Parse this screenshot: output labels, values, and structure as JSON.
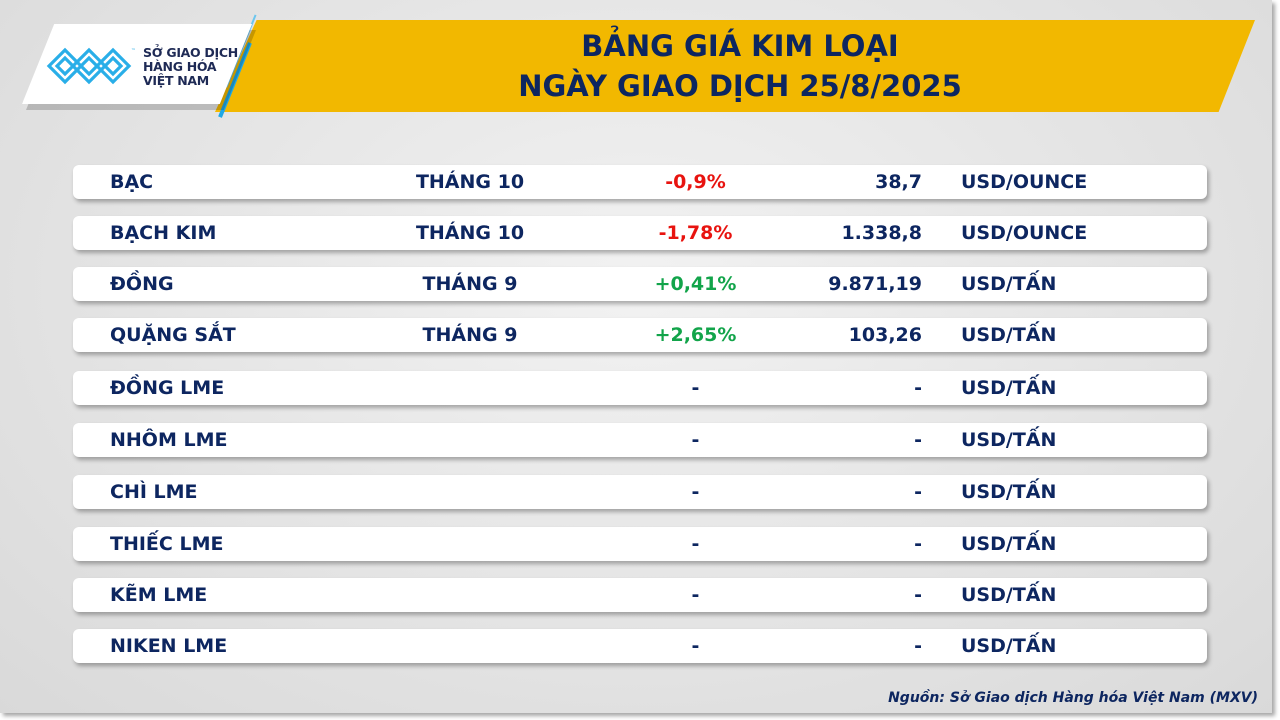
{
  "header": {
    "title_line1": "BẢNG GIÁ KIM LOẠI",
    "title_line2": "NGÀY GIAO DỊCH 25/8/2025",
    "logo": {
      "line1": "SỞ GIAO DỊCH",
      "line2": "HÀNG HÓA",
      "line3": "VIỆT NAM",
      "tm": "™"
    }
  },
  "colors": {
    "brand_navy": "#0d2660",
    "banner_gold": "#f2b800",
    "up": "#12a44a",
    "down": "#e8130f",
    "logo_blue": "#29aee8"
  },
  "rows": [
    {
      "name": "BẠC",
      "month": "THÁNG 10",
      "change": "-0,9%",
      "dir": "down",
      "price": "38,7",
      "unit": "USD/OUNCE"
    },
    {
      "name": "BẠCH KIM",
      "month": "THÁNG 10",
      "change": "-1,78%",
      "dir": "down",
      "price": "1.338,8",
      "unit": "USD/OUNCE"
    },
    {
      "name": "ĐỒNG",
      "month": "THÁNG 9",
      "change": "+0,41%",
      "dir": "up",
      "price": "9.871,19",
      "unit": "USD/TẤN"
    },
    {
      "name": "QUẶNG SẮT",
      "month": "THÁNG 9",
      "change": "+2,65%",
      "dir": "up",
      "price": "103,26",
      "unit": "USD/TẤN"
    },
    {
      "name": "ĐỒNG LME",
      "month": "",
      "change": "-",
      "dir": "",
      "price": "-",
      "unit": "USD/TẤN"
    },
    {
      "name": "NHÔM LME",
      "month": "",
      "change": "-",
      "dir": "",
      "price": "-",
      "unit": "USD/TẤN"
    },
    {
      "name": "CHÌ LME",
      "month": "",
      "change": "-",
      "dir": "",
      "price": "-",
      "unit": "USD/TẤN"
    },
    {
      "name": "THIẾC LME",
      "month": "",
      "change": "-",
      "dir": "",
      "price": "-",
      "unit": "USD/TẤN"
    },
    {
      "name": "KẼM LME",
      "month": "",
      "change": "-",
      "dir": "",
      "price": "-",
      "unit": "USD/TẤN"
    },
    {
      "name": "NIKEN LME",
      "month": "",
      "change": "-",
      "dir": "",
      "price": "-",
      "unit": "USD/TẤN"
    }
  ],
  "footer": {
    "source": "Nguồn: Sở Giao dịch Hàng hóa Việt Nam (MXV)"
  }
}
